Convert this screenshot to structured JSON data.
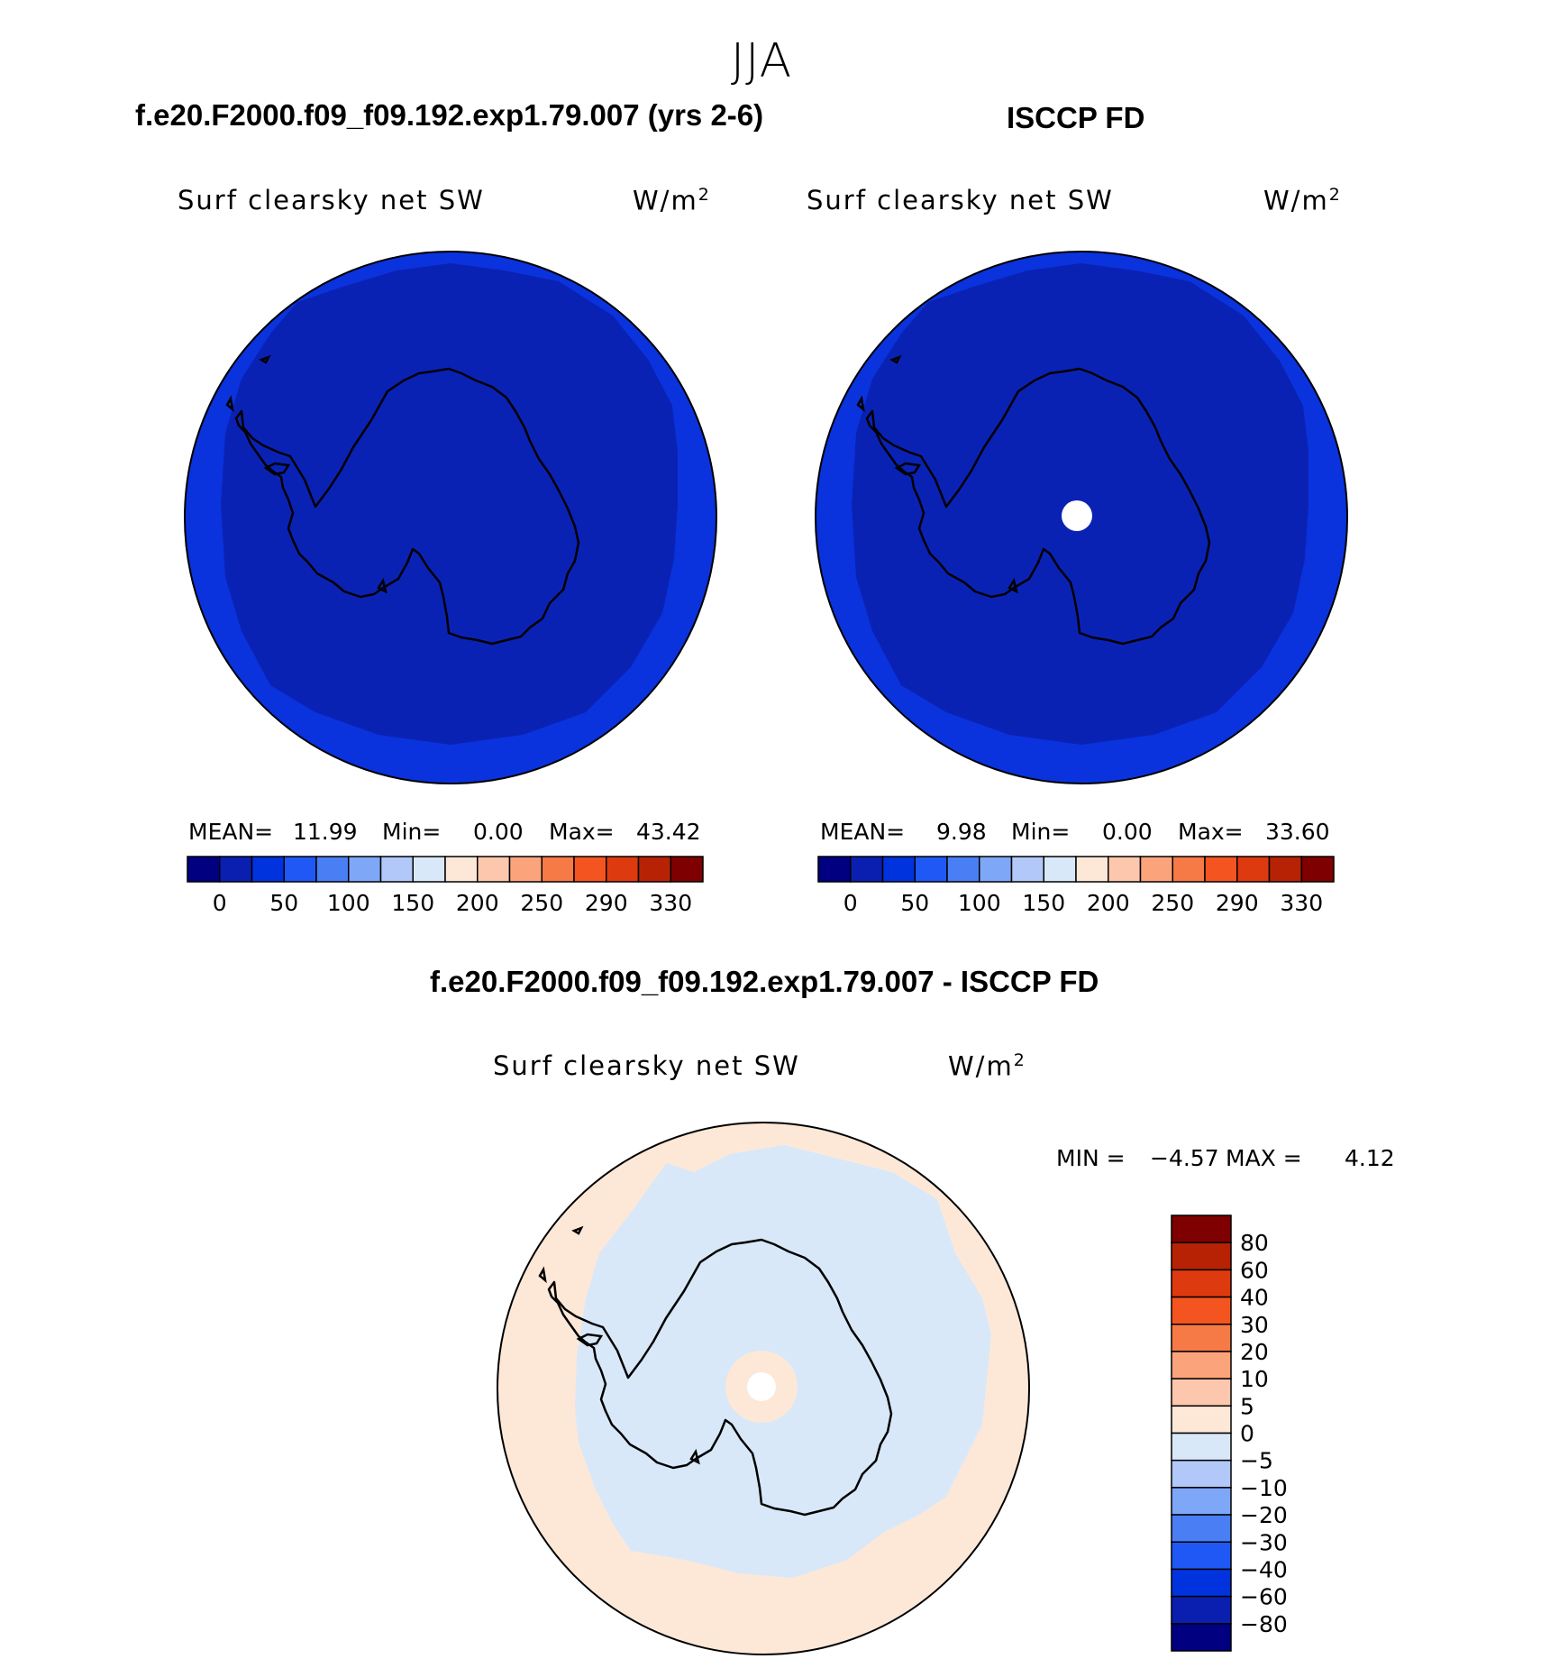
{
  "figure": {
    "title": "JJA"
  },
  "colors": {
    "cmap_top": [
      "#000080",
      "#0a1fb0",
      "#0033dd",
      "#1f58f5",
      "#4a7ef5",
      "#7fa7f8",
      "#b2c8f8",
      "#d8e8f8",
      "#fde8d8",
      "#fcc7ac",
      "#fba47c",
      "#f67a46",
      "#f45520",
      "#de3a10",
      "#b72205",
      "#7f0000"
    ],
    "cmap_bottom": [
      "#000080",
      "#0a1fb0",
      "#0033dd",
      "#1f58f5",
      "#4a7ef5",
      "#7fa7f8",
      "#b2c8f8",
      "#d8e8f8",
      "#fde8d8",
      "#fcc7ac",
      "#fba47c",
      "#f67a46",
      "#f45520",
      "#de3a10",
      "#b72205",
      "#7f0000"
    ],
    "map_ocean_outer": "#0a33dd",
    "map_inner": "#0a22b4",
    "diff_outer": "#fde8d8",
    "diff_inner": "#d8e8f8",
    "missing": "#ffffff",
    "coast": "#000000"
  },
  "panels": [
    {
      "title": "f.e20.F2000.f09_f09.192.exp1.79.007 (yrs 2-6)",
      "variable": "Surf clearsky net SW",
      "units_base": "W/m",
      "units_exp": "2",
      "mean_label": "MEAN=",
      "mean": "11.99",
      "min_label": "Min=",
      "min": "0.00",
      "max_label": "Max=",
      "max": "43.42"
    },
    {
      "title": "ISCCP FD",
      "variable": "Surf clearsky net SW",
      "units_base": "W/m",
      "units_exp": "2",
      "mean_label": "MEAN=",
      "mean": "9.98",
      "min_label": "Min=",
      "min": "0.00",
      "max_label": "Max=",
      "max": "33.60"
    }
  ],
  "top_colorbar_ticks": [
    "0",
    "50",
    "100",
    "150",
    "200",
    "250",
    "290",
    "330"
  ],
  "diff_panel": {
    "title": "f.e20.F2000.f09_f09.192.exp1.79.007 - ISCCP FD",
    "variable": "Surf clearsky net SW",
    "units_base": "W/m",
    "units_exp": "2",
    "min_label": "MIN =",
    "min": "−4.57",
    "max_label": "MAX =",
    "max": "4.12",
    "colorbar_ticks": [
      "80",
      "60",
      "40",
      "30",
      "20",
      "10",
      "5",
      "0",
      "−5",
      "−10",
      "−20",
      "−30",
      "−40",
      "−60",
      "−80"
    ]
  }
}
